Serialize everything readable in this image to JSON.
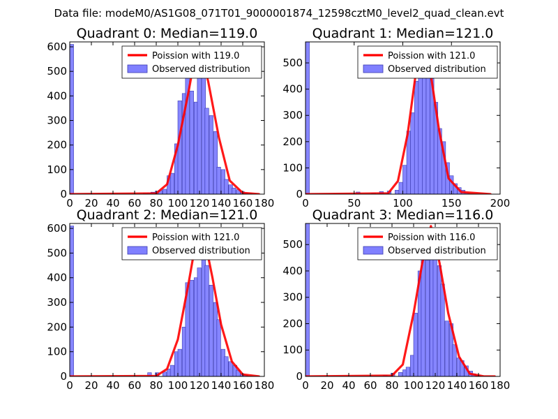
{
  "figure": {
    "suptitle": "Data file: modeM0/AS1G08_071T01_9000001874_12598cztM0_level2_quad_clean.evt"
  },
  "colors": {
    "bar_fill": "#8080ff",
    "bar_edge": "#3b3bb0",
    "fit_line": "#ff0000",
    "axis": "#000000"
  },
  "chart_data": [
    {
      "type": "bar",
      "title": "Quadrant 0: Median=119.0",
      "xlim": [
        0,
        180
      ],
      "ylim": [
        0,
        620
      ],
      "xticks": [
        0,
        20,
        40,
        60,
        80,
        100,
        120,
        140,
        160,
        180
      ],
      "yticks": [
        0,
        100,
        200,
        300,
        400,
        500,
        600
      ],
      "bin_width": 3.6,
      "bins": [
        [
          0,
          610
        ],
        [
          68,
          3
        ],
        [
          72,
          6
        ],
        [
          75,
          8
        ],
        [
          79,
          12
        ],
        [
          82,
          15
        ],
        [
          86,
          20
        ],
        [
          90,
          75
        ],
        [
          93,
          85
        ],
        [
          97,
          205
        ],
        [
          100,
          380
        ],
        [
          104,
          410
        ],
        [
          107,
          520
        ],
        [
          111,
          420
        ],
        [
          115,
          375
        ],
        [
          118,
          590
        ],
        [
          122,
          520
        ],
        [
          125,
          350
        ],
        [
          129,
          320
        ],
        [
          133,
          255
        ],
        [
          136,
          110
        ],
        [
          140,
          100
        ],
        [
          143,
          60
        ],
        [
          147,
          38
        ],
        [
          150,
          25
        ],
        [
          154,
          18
        ],
        [
          158,
          10
        ],
        [
          161,
          5
        ],
        [
          165,
          3
        ]
      ],
      "fit_x": [
        0,
        80,
        90,
        100,
        110,
        115,
        119,
        123,
        128,
        138,
        148,
        160,
        175
      ],
      "fit_y": [
        0,
        3,
        40,
        200,
        420,
        540,
        575,
        540,
        460,
        230,
        55,
        5,
        0
      ],
      "legend": [
        "Poission with 119.0",
        "Observed distribution"
      ]
    },
    {
      "type": "bar",
      "title": "Quadrant 1: Median=121.0",
      "xlim": [
        0,
        200
      ],
      "ylim": [
        0,
        580
      ],
      "xticks": [
        0,
        50,
        100,
        150,
        200
      ],
      "yticks": [
        0,
        100,
        200,
        300,
        400,
        500
      ],
      "bin_width": 4,
      "bins": [
        [
          0,
          580
        ],
        [
          52,
          8
        ],
        [
          68,
          4
        ],
        [
          76,
          10
        ],
        [
          84,
          12
        ],
        [
          92,
          15
        ],
        [
          96,
          45
        ],
        [
          100,
          110
        ],
        [
          104,
          240
        ],
        [
          108,
          310
        ],
        [
          112,
          430
        ],
        [
          116,
          510
        ],
        [
          120,
          540
        ],
        [
          124,
          450
        ],
        [
          128,
          440
        ],
        [
          132,
          350
        ],
        [
          136,
          250
        ],
        [
          140,
          200
        ],
        [
          144,
          120
        ],
        [
          148,
          70
        ],
        [
          152,
          40
        ],
        [
          156,
          25
        ],
        [
          160,
          15
        ],
        [
          164,
          5
        ]
      ],
      "fit_x": [
        0,
        85,
        95,
        105,
        113,
        121,
        129,
        137,
        147,
        160,
        190
      ],
      "fit_y": [
        0,
        3,
        50,
        230,
        450,
        555,
        450,
        250,
        60,
        8,
        0
      ],
      "legend": [
        "Poission with 121.0",
        "Observed distribution"
      ]
    },
    {
      "type": "bar",
      "title": "Quadrant 2: Median=121.0",
      "xlim": [
        0,
        180
      ],
      "ylim": [
        0,
        620
      ],
      "xticks": [
        0,
        20,
        40,
        60,
        80,
        100,
        120,
        140,
        160,
        180
      ],
      "yticks": [
        0,
        100,
        200,
        300,
        400,
        500,
        600
      ],
      "bin_width": 3.6,
      "bins": [
        [
          0,
          610
        ],
        [
          72,
          15
        ],
        [
          79,
          15
        ],
        [
          86,
          18
        ],
        [
          90,
          30
        ],
        [
          93,
          45
        ],
        [
          97,
          100
        ],
        [
          100,
          110
        ],
        [
          104,
          200
        ],
        [
          107,
          380
        ],
        [
          111,
          390
        ],
        [
          115,
          400
        ],
        [
          118,
          440
        ],
        [
          122,
          580
        ],
        [
          125,
          450
        ],
        [
          129,
          370
        ],
        [
          133,
          300
        ],
        [
          136,
          230
        ],
        [
          140,
          110
        ],
        [
          143,
          80
        ],
        [
          147,
          60
        ],
        [
          151,
          45
        ],
        [
          154,
          25
        ],
        [
          158,
          10
        ],
        [
          161,
          5
        ]
      ],
      "fit_x": [
        0,
        80,
        90,
        100,
        110,
        116,
        121,
        126,
        132,
        140,
        150,
        160,
        175
      ],
      "fit_y": [
        0,
        2,
        30,
        150,
        380,
        530,
        585,
        530,
        400,
        210,
        60,
        8,
        0
      ],
      "legend": [
        "Poission with 121.0",
        "Observed distribution"
      ]
    },
    {
      "type": "bar",
      "title": "Quadrant 3: Median=116.0",
      "xlim": [
        0,
        180
      ],
      "ylim": [
        0,
        580
      ],
      "xticks": [
        0,
        20,
        40,
        60,
        80,
        100,
        120,
        140,
        160,
        180
      ],
      "yticks": [
        0,
        100,
        200,
        300,
        400,
        500
      ],
      "bin_width": 3.6,
      "bins": [
        [
          0,
          580
        ],
        [
          72,
          5
        ],
        [
          79,
          12
        ],
        [
          86,
          15
        ],
        [
          90,
          25
        ],
        [
          93,
          35
        ],
        [
          97,
          80
        ],
        [
          100,
          240
        ],
        [
          104,
          400
        ],
        [
          107,
          460
        ],
        [
          111,
          440
        ],
        [
          115,
          560
        ],
        [
          118,
          530
        ],
        [
          122,
          420
        ],
        [
          125,
          350
        ],
        [
          129,
          210
        ],
        [
          133,
          200
        ],
        [
          136,
          120
        ],
        [
          140,
          70
        ],
        [
          143,
          60
        ],
        [
          147,
          40
        ],
        [
          151,
          20
        ],
        [
          154,
          10
        ],
        [
          158,
          5
        ]
      ],
      "fit_x": [
        0,
        80,
        90,
        100,
        108,
        116,
        124,
        132,
        142,
        152,
        165,
        175
      ],
      "fit_y": [
        0,
        3,
        45,
        240,
        430,
        570,
        430,
        240,
        75,
        10,
        0,
        0
      ],
      "legend": [
        "Poission with 116.0",
        "Observed distribution"
      ]
    }
  ]
}
